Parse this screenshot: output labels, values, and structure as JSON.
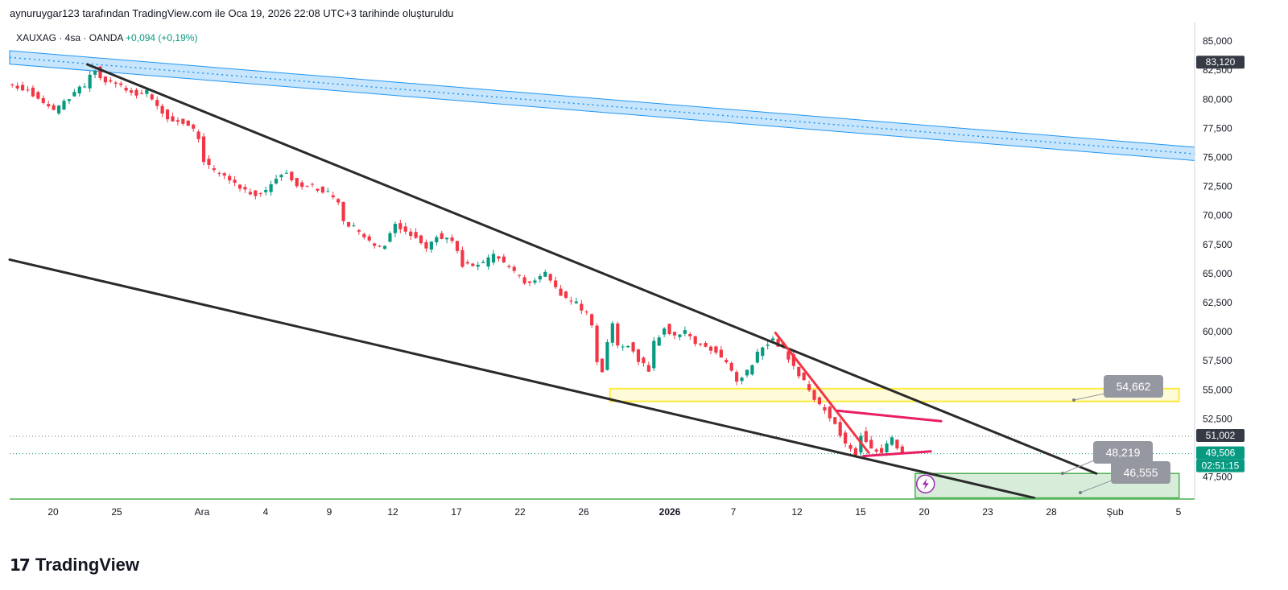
{
  "header": {
    "text": "aynuruygar123 tarafından TradingView.com ile Oca 19, 2026 22:08 UTC+3 tarihinde oluşturuldu"
  },
  "legend": {
    "symbol": "XAUXAG · 4sa · OANDA",
    "change": "+0,094 (+0,19%)"
  },
  "footer": {
    "brand": "TradingView",
    "logo_glyph": "17"
  },
  "colors": {
    "up": "#089981",
    "down": "#f23645",
    "channel": "#2a2a2a",
    "pink": "#e91e63",
    "blue_band": "#2196f3",
    "yellow_zone": "#ffeb3b",
    "green_zone": "#4caf50",
    "label_gray": "#9598a1",
    "price_badge_green": "#089981",
    "last_price_dark": "#363a45"
  },
  "chart_data": {
    "type": "candlestick",
    "symbol": "XAUXAG",
    "interval": "4sa",
    "source": "OANDA",
    "ylim": [
      45600,
      86600
    ],
    "y_ticks": [
      "85,000",
      "82,500",
      "80,000",
      "77,500",
      "75,000",
      "72,500",
      "70,000",
      "67,500",
      "65,000",
      "62,500",
      "60,000",
      "57,500",
      "55,000",
      "52,500",
      "47,500"
    ],
    "x_ticks": [
      "20",
      "25",
      "Ara",
      "4",
      "9",
      "12",
      "17",
      "22",
      "26",
      "2026",
      "7",
      "12",
      "15",
      "20",
      "23",
      "28",
      "Şub",
      "5"
    ],
    "price_labels": [
      {
        "text": "83,120",
        "value": 83120,
        "style": "dark"
      },
      {
        "text": "51,002",
        "value": 51002,
        "style": "dark"
      },
      {
        "text": "49,506",
        "value": 49506,
        "style": "green"
      },
      {
        "text": "02:51:15",
        "value": 48700,
        "style": "green"
      }
    ],
    "level_labels": [
      {
        "text": "54,662",
        "value": 54662
      },
      {
        "text": "48,219",
        "value": 48219
      },
      {
        "text": "46,555",
        "value": 46555
      }
    ],
    "close_path": [
      [
        0,
        81200
      ],
      [
        4,
        80900
      ],
      [
        6,
        80000
      ],
      [
        9,
        78900
      ],
      [
        11,
        79700
      ],
      [
        13,
        80600
      ],
      [
        15,
        81100
      ],
      [
        16,
        82000
      ],
      [
        17,
        82700
      ],
      [
        18,
        81800
      ],
      [
        20,
        81400
      ],
      [
        22,
        81100
      ],
      [
        24,
        80700
      ],
      [
        25,
        80500
      ],
      [
        27,
        80600
      ],
      [
        29,
        79500
      ],
      [
        31,
        78400
      ],
      [
        33,
        78100
      ],
      [
        35,
        77800
      ],
      [
        37,
        76700
      ],
      [
        38,
        74800
      ],
      [
        40,
        73800
      ],
      [
        42,
        73300
      ],
      [
        44,
        72800
      ],
      [
        46,
        72200
      ],
      [
        48,
        71900
      ],
      [
        50,
        72200
      ],
      [
        52,
        73200
      ],
      [
        54,
        73800
      ],
      [
        56,
        72700
      ],
      [
        58,
        72600
      ],
      [
        60,
        72300
      ],
      [
        62,
        71900
      ],
      [
        64,
        71000
      ],
      [
        65,
        69500
      ],
      [
        67,
        68900
      ],
      [
        69,
        68300
      ],
      [
        71,
        67200
      ],
      [
        73,
        67500
      ],
      [
        75,
        69200
      ],
      [
        77,
        68600
      ],
      [
        79,
        68100
      ],
      [
        81,
        67300
      ],
      [
        83,
        68300
      ],
      [
        86,
        67800
      ],
      [
        88,
        65800
      ],
      [
        90,
        65500
      ],
      [
        92,
        65800
      ],
      [
        94,
        66600
      ],
      [
        96,
        65900
      ],
      [
        98,
        65100
      ],
      [
        100,
        64300
      ],
      [
        102,
        64400
      ],
      [
        104,
        64900
      ],
      [
        106,
        63700
      ],
      [
        108,
        62700
      ],
      [
        110,
        62400
      ],
      [
        112,
        61500
      ],
      [
        113,
        60300
      ],
      [
        114,
        57500
      ],
      [
        115,
        56500
      ],
      [
        116,
        59300
      ],
      [
        117,
        60500
      ],
      [
        118,
        58700
      ],
      [
        120,
        59000
      ],
      [
        122,
        57600
      ],
      [
        124,
        56700
      ],
      [
        125,
        59000
      ],
      [
        127,
        60500
      ],
      [
        129,
        59500
      ],
      [
        131,
        60000
      ],
      [
        133,
        59000
      ],
      [
        134,
        58800
      ],
      [
        136,
        58600
      ],
      [
        137,
        58200
      ],
      [
        139,
        57400
      ],
      [
        141,
        55700
      ],
      [
        143,
        56500
      ],
      [
        145,
        58100
      ],
      [
        146,
        58800
      ],
      [
        148,
        59400
      ],
      [
        150,
        58500
      ],
      [
        152,
        57200
      ],
      [
        154,
        55600
      ],
      [
        156,
        54200
      ],
      [
        158,
        53300
      ],
      [
        160,
        52100
      ],
      [
        162,
        50300
      ],
      [
        164,
        49400
      ],
      [
        165,
        51200
      ],
      [
        167,
        50100
      ],
      [
        169,
        49500
      ],
      [
        171,
        50800
      ],
      [
        173,
        49500
      ]
    ],
    "x_range": [
      0,
      229
    ],
    "drawings": {
      "blue_band_center": [
        [
          0,
          83600
        ],
        [
          229,
          75300
        ]
      ],
      "blue_band_width": 1150,
      "upper_channel": [
        [
          15,
          83000
        ],
        [
          210,
          47800
        ]
      ],
      "lower_channel": [
        [
          0,
          66200
        ],
        [
          198,
          45700
        ]
      ],
      "red_trendline": [
        [
          148,
          59900
        ],
        [
          166,
          49600
        ]
      ],
      "pink_upper": [
        [
          160,
          53200
        ],
        [
          180,
          52300
        ]
      ],
      "pink_lower": [
        [
          165,
          49300
        ],
        [
          178,
          49700
        ]
      ],
      "yellow_zone": {
        "x": [
          116,
          226
        ],
        "y": [
          54000,
          55100
        ]
      },
      "green_zone": {
        "x": [
          175,
          226
        ],
        "y": [
          45700,
          47800
        ]
      }
    }
  }
}
